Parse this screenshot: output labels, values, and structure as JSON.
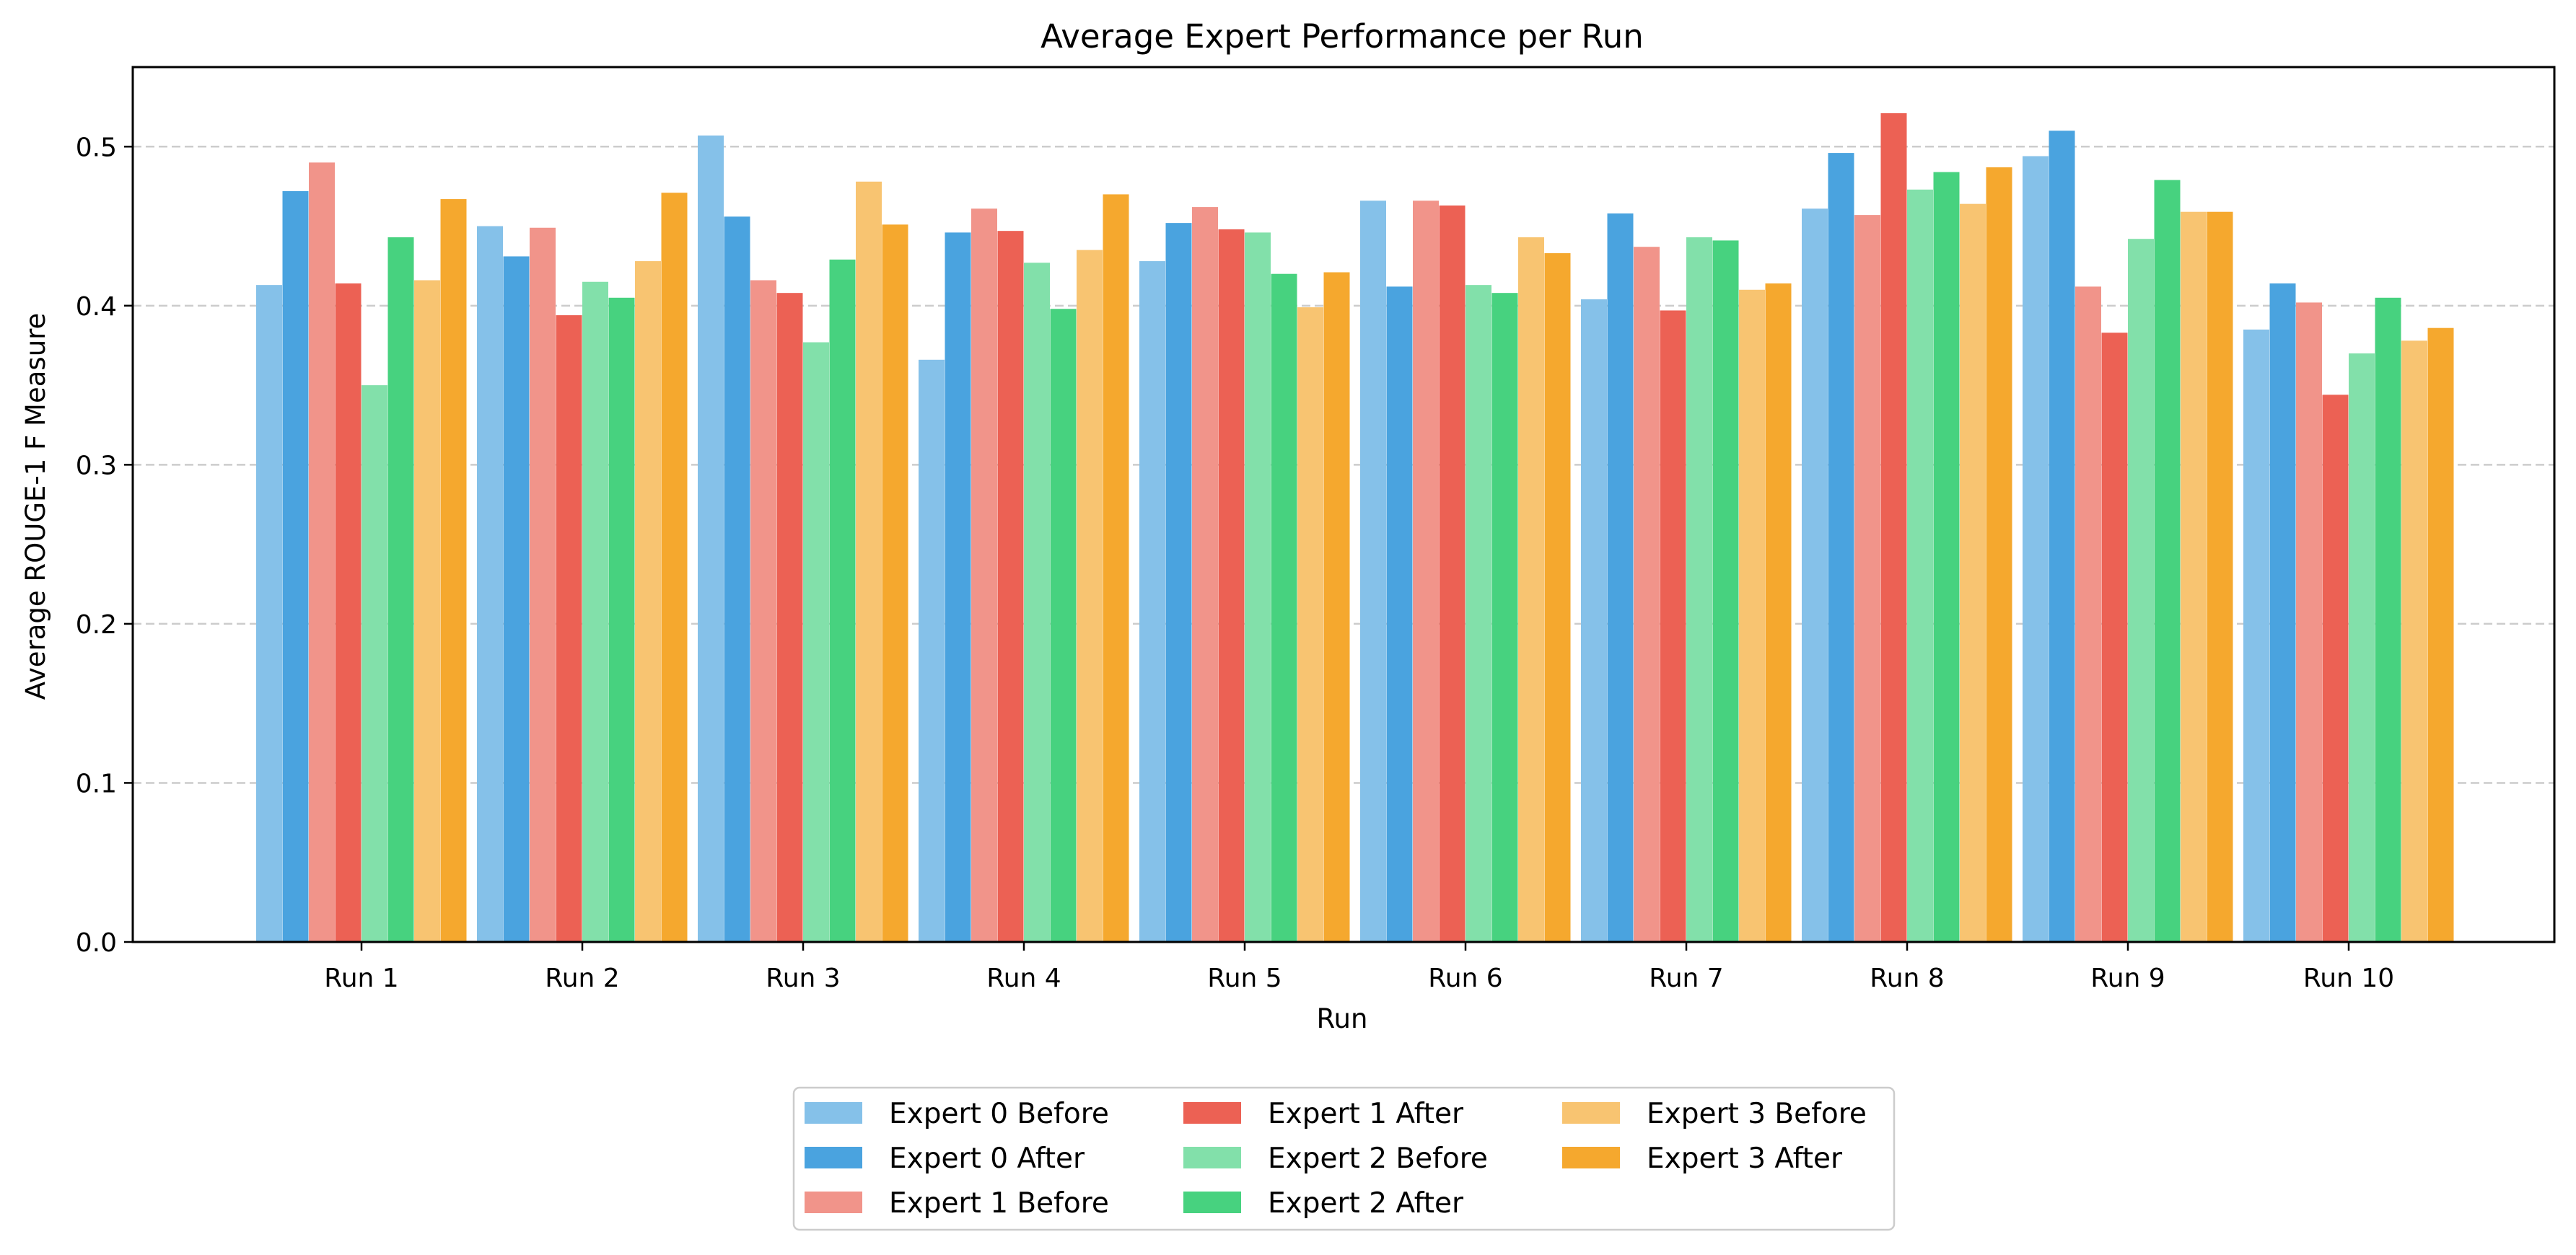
{
  "chart_data": {
    "type": "bar",
    "title": "Average Expert Performance per Run",
    "xlabel": "Run",
    "ylabel": "Average ROUGE-1 F Measure",
    "ylim": [
      0,
      0.55
    ],
    "yticks": [
      0.0,
      0.1,
      0.2,
      0.3,
      0.4,
      0.5
    ],
    "ytick_labels": [
      "0.0",
      "0.1",
      "0.2",
      "0.3",
      "0.4",
      "0.5"
    ],
    "grid": "y-dashed",
    "legend_position": "bottom-center",
    "categories": [
      "Run 1",
      "Run 2",
      "Run 3",
      "Run 4",
      "Run 5",
      "Run 6",
      "Run 7",
      "Run 8",
      "Run 9",
      "Run 10"
    ],
    "series": [
      {
        "name": "Expert 0 Before",
        "color": "#85c1e9",
        "values": [
          0.413,
          0.45,
          0.507,
          0.366,
          0.428,
          0.466,
          0.404,
          0.461,
          0.494,
          0.385
        ]
      },
      {
        "name": "Expert 0 After",
        "color": "#4aa3df",
        "values": [
          0.472,
          0.431,
          0.456,
          0.446,
          0.452,
          0.412,
          0.458,
          0.496,
          0.51,
          0.414
        ]
      },
      {
        "name": "Expert 1 Before",
        "color": "#f1948a",
        "values": [
          0.49,
          0.449,
          0.416,
          0.461,
          0.462,
          0.466,
          0.437,
          0.457,
          0.412,
          0.402
        ]
      },
      {
        "name": "Expert 1 After",
        "color": "#ec6154",
        "values": [
          0.414,
          0.394,
          0.408,
          0.447,
          0.448,
          0.463,
          0.397,
          0.521,
          0.383,
          0.344
        ]
      },
      {
        "name": "Expert 2 Before",
        "color": "#82e0aa",
        "values": [
          0.35,
          0.415,
          0.377,
          0.427,
          0.446,
          0.413,
          0.443,
          0.473,
          0.442,
          0.37
        ]
      },
      {
        "name": "Expert 2 After",
        "color": "#47d27f",
        "values": [
          0.443,
          0.405,
          0.429,
          0.398,
          0.42,
          0.408,
          0.441,
          0.484,
          0.479,
          0.405
        ]
      },
      {
        "name": "Expert 3 Before",
        "color": "#f8c471",
        "values": [
          0.416,
          0.428,
          0.478,
          0.435,
          0.399,
          0.443,
          0.41,
          0.464,
          0.459,
          0.378
        ]
      },
      {
        "name": "Expert 3 After",
        "color": "#f5a82e",
        "values": [
          0.467,
          0.471,
          0.451,
          0.47,
          0.421,
          0.433,
          0.414,
          0.487,
          0.459,
          0.386
        ]
      }
    ]
  }
}
